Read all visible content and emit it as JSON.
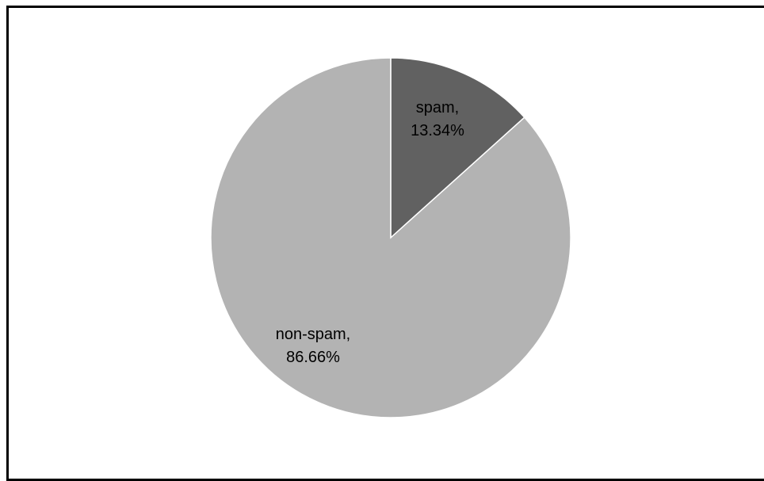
{
  "chart_data": {
    "type": "pie",
    "title": "",
    "start_angle": "12 o'clock, clockwise",
    "slices": [
      {
        "label": "spam,",
        "percent_label": "13.34%",
        "value": 13.34,
        "color": "#616161"
      },
      {
        "label": "non-spam,",
        "percent_label": "86.66%",
        "value": 86.66,
        "color": "#b3b3b3"
      }
    ],
    "legend": "none",
    "border_color": "#000000",
    "background": "#ffffff"
  }
}
